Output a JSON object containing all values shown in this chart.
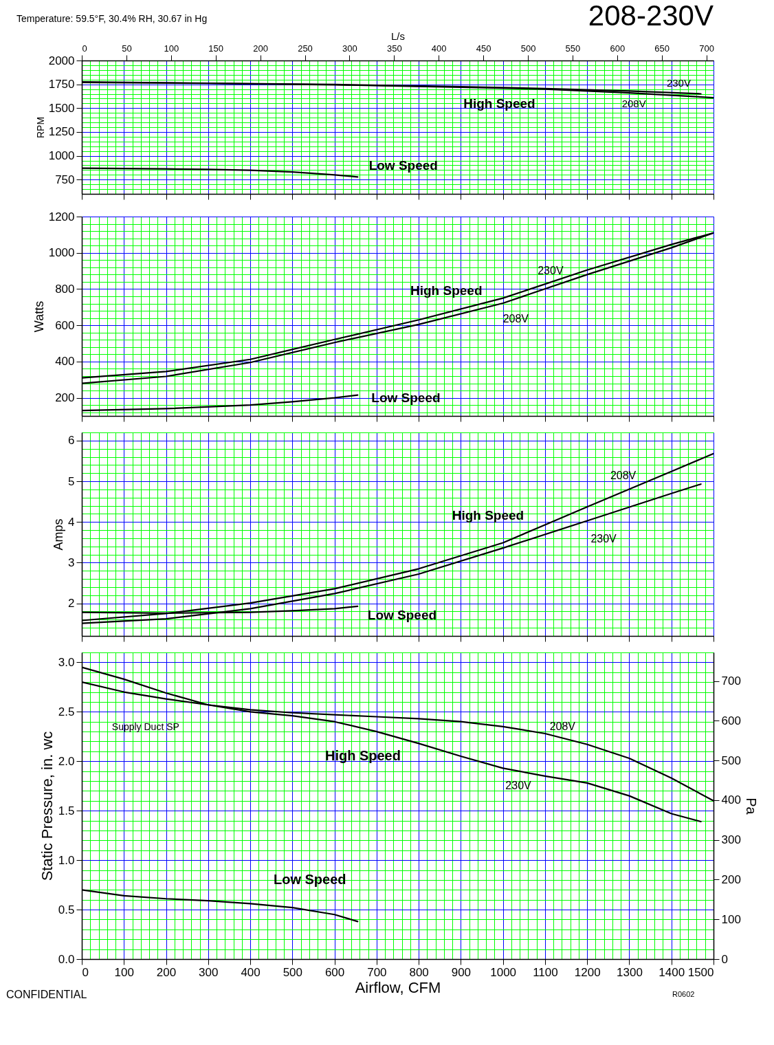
{
  "chart_data": [
    {
      "type": "line",
      "title": "208-230V",
      "ylabel": "RPM",
      "x2label": "L/s",
      "xlim": [
        0,
        1500
      ],
      "xticks": [
        0,
        100,
        200,
        300,
        400,
        500,
        600,
        700,
        800,
        900,
        1000,
        1100,
        1200,
        1300,
        1400,
        1500
      ],
      "x2lim": [
        0,
        708
      ],
      "x2ticks": [
        0,
        50,
        100,
        150,
        200,
        250,
        300,
        350,
        400,
        450,
        500,
        550,
        600,
        650,
        700
      ],
      "ylim": [
        600,
        2000
      ],
      "yticks": [
        750,
        1000,
        1250,
        1500,
        1750,
        2000
      ],
      "grid": true,
      "tick_labels": "y",
      "series": [
        {
          "color": "#000000",
          "x": [
            0,
            300,
            600,
            900,
            1100,
            1300,
            1470
          ],
          "values": [
            1775,
            1762,
            1748,
            1725,
            1705,
            1680,
            1650
          ]
        },
        {
          "color": "#000000",
          "x": [
            0,
            300,
            600,
            900,
            1100,
            1300,
            1500
          ],
          "values": [
            1770,
            1760,
            1745,
            1720,
            1700,
            1660,
            1610
          ]
        },
        {
          "color": "#000000",
          "x": [
            0,
            100,
            200,
            300,
            400,
            500,
            600,
            655
          ],
          "values": [
            870,
            866,
            862,
            857,
            848,
            830,
            800,
            778
          ]
        }
      ],
      "annotations": [
        "Temperature: 59.5°F, 30.4% RH, 30.67 in Hg",
        "230V",
        "208V",
        "High Speed",
        "Low Speed"
      ]
    },
    {
      "type": "line",
      "ylabel": "Watts",
      "xlim": [
        0,
        1500
      ],
      "xticks": [
        0,
        100,
        200,
        300,
        400,
        500,
        600,
        700,
        800,
        900,
        1000,
        1100,
        1200,
        1300,
        1400,
        1500
      ],
      "ylim": [
        100,
        1200
      ],
      "yticks": [
        200,
        400,
        600,
        800,
        1000,
        1200
      ],
      "grid": true,
      "tick_labels": "y",
      "series": [
        {
          "color": "#000000",
          "x": [
            0,
            200,
            400,
            600,
            800,
            1000,
            1200,
            1400,
            1500
          ],
          "values": [
            310,
            345,
            412,
            522,
            630,
            750,
            905,
            1046,
            1110
          ]
        },
        {
          "color": "#000000",
          "x": [
            0,
            200,
            400,
            600,
            800,
            1000,
            1200,
            1400,
            1500
          ],
          "values": [
            280,
            318,
            395,
            505,
            605,
            722,
            880,
            1028,
            1110
          ]
        },
        {
          "color": "#000000",
          "x": [
            0,
            200,
            400,
            500,
            600,
            655
          ],
          "values": [
            130,
            140,
            160,
            178,
            200,
            215
          ]
        }
      ],
      "annotations": [
        "230V",
        "208V",
        "High Speed",
        "Low Speed"
      ]
    },
    {
      "type": "line",
      "ylabel": "Amps",
      "xlim": [
        0,
        1500
      ],
      "xticks": [
        0,
        100,
        200,
        300,
        400,
        500,
        600,
        700,
        800,
        900,
        1000,
        1100,
        1200,
        1300,
        1400,
        1500
      ],
      "ylim": [
        1.2,
        6.2
      ],
      "yticks": [
        2,
        3,
        4,
        5,
        6
      ],
      "grid": true,
      "tick_labels": "y",
      "series": [
        {
          "color": "#000000",
          "x": [
            0,
            200,
            400,
            600,
            800,
            1000,
            1200,
            1400,
            1500
          ],
          "values": [
            1.58,
            1.75,
            2.01,
            2.36,
            2.85,
            3.49,
            4.37,
            5.24,
            5.68
          ]
        },
        {
          "color": "#000000",
          "x": [
            0,
            200,
            400,
            600,
            800,
            1000,
            1200,
            1400,
            1470
          ],
          "values": [
            1.51,
            1.62,
            1.87,
            2.24,
            2.72,
            3.36,
            4.03,
            4.7,
            4.93
          ]
        },
        {
          "color": "#000000",
          "x": [
            0,
            200,
            400,
            500,
            600,
            655
          ],
          "values": [
            1.78,
            1.76,
            1.78,
            1.82,
            1.87,
            1.93
          ]
        }
      ],
      "annotations": [
        "208V",
        "230V",
        "High Speed",
        "Low Speed"
      ]
    },
    {
      "type": "line",
      "xlabel": "Airflow, CFM",
      "ylabel": "Static Pressure, in. wc",
      "y2label": "Pa",
      "xlim": [
        0,
        1500
      ],
      "xticks": [
        0,
        100,
        200,
        300,
        400,
        500,
        600,
        700,
        800,
        900,
        1000,
        1100,
        1200,
        1300,
        1400,
        1500
      ],
      "ylim": [
        0,
        3.1
      ],
      "yticks": [
        {
          "value": 0,
          "label": "0.0"
        },
        0.5,
        {
          "value": 1,
          "label": "1.0"
        },
        1.5,
        {
          "value": 2,
          "label": "2.0"
        },
        2.5,
        {
          "value": 3,
          "label": "3.0"
        }
      ],
      "y2lim": [
        0,
        772
      ],
      "y2ticks": [
        0,
        100,
        200,
        300,
        400,
        500,
        600,
        700
      ],
      "grid": true,
      "series": [
        {
          "color": "#000000",
          "x": [
            0,
            100,
            200,
            300,
            400,
            500,
            600,
            700,
            800,
            900,
            1000,
            1100,
            1200,
            1300,
            1400,
            1500
          ],
          "values": [
            2.8,
            2.7,
            2.63,
            2.57,
            2.52,
            2.49,
            2.47,
            2.45,
            2.43,
            2.4,
            2.35,
            2.28,
            2.17,
            2.03,
            1.83,
            1.6
          ]
        },
        {
          "color": "#000000",
          "x": [
            0,
            100,
            200,
            300,
            400,
            500,
            600,
            700,
            800,
            900,
            1000,
            1100,
            1200,
            1300,
            1400,
            1470
          ],
          "values": [
            2.95,
            2.83,
            2.69,
            2.57,
            2.5,
            2.46,
            2.4,
            2.3,
            2.18,
            2.05,
            1.93,
            1.85,
            1.78,
            1.65,
            1.47,
            1.39
          ]
        },
        {
          "color": "#000000",
          "x": [
            0,
            100,
            200,
            300,
            400,
            500,
            600,
            655
          ],
          "values": [
            0.7,
            0.64,
            0.61,
            0.59,
            0.56,
            0.52,
            0.45,
            0.38
          ]
        }
      ],
      "annotations": [
        "Supply Duct SP",
        "208V",
        "High Speed",
        "230V",
        "Low Speed",
        "CONFIDENTIAL",
        "R0602"
      ]
    }
  ]
}
